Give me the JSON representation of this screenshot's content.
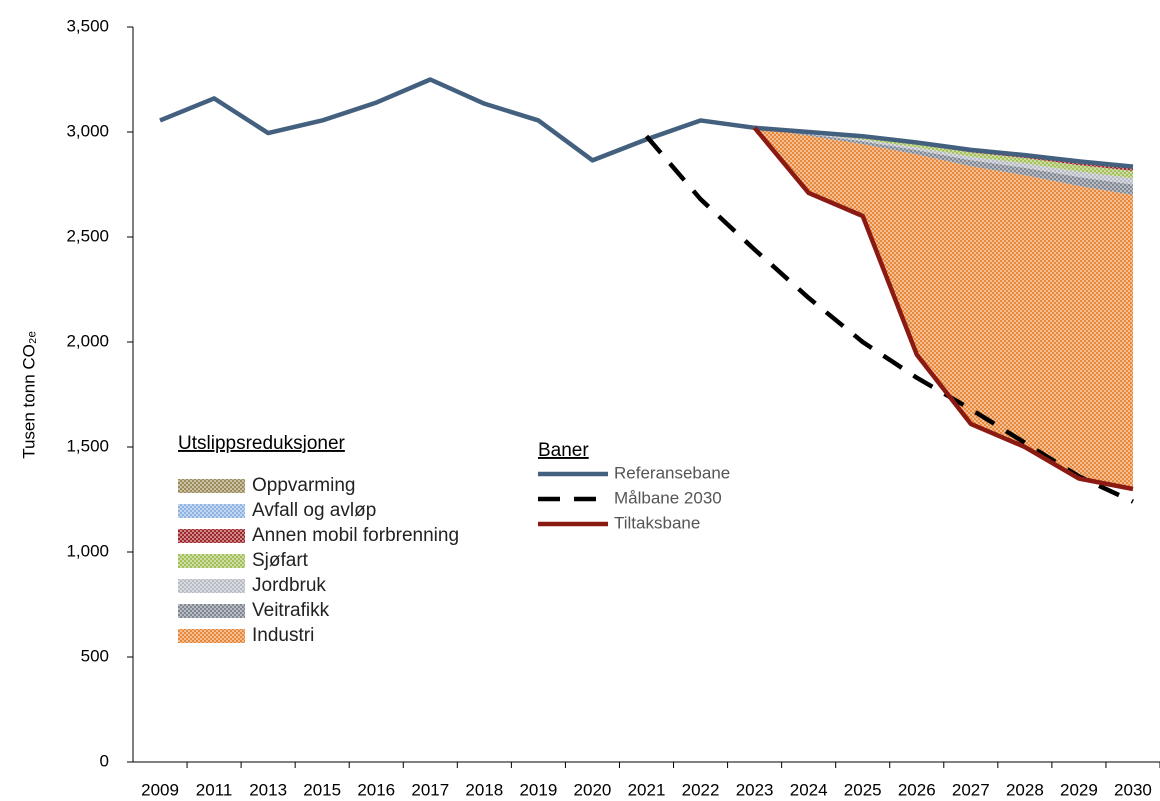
{
  "chart_data": {
    "type": "line",
    "y_label": "Tusen tonn CO₂ₑ",
    "categories": [
      "2009",
      "2011",
      "2013",
      "2015",
      "2016",
      "2017",
      "2018",
      "2019",
      "2020",
      "2021",
      "2022",
      "2023",
      "2024",
      "2025",
      "2026",
      "2027",
      "2028",
      "2029",
      "2030"
    ],
    "ylim": [
      0,
      3500
    ],
    "yticks": [
      0,
      500,
      {
        "value": 1000,
        "label": "1,000"
      },
      {
        "value": 1500,
        "label": "1,500"
      },
      {
        "value": 2000,
        "label": "2,000"
      },
      {
        "value": 2500,
        "label": "2,500"
      },
      {
        "value": 3000,
        "label": "3,000"
      },
      {
        "value": 3500,
        "label": "3,500"
      }
    ],
    "lines_legend_title": "Baner",
    "series": [
      {
        "name": "Referansebane",
        "color": "#44607f",
        "dash": false,
        "values": [
          3055,
          3160,
          2995,
          3055,
          3140,
          3250,
          3135,
          3055,
          2865,
          2965,
          3055,
          3020,
          3000,
          2980,
          2950,
          2915,
          2890,
          2860,
          2835
        ]
      },
      {
        "name": "Målbane 2030",
        "color": "#000000",
        "dash": true,
        "values": [
          null,
          null,
          null,
          null,
          null,
          null,
          null,
          null,
          null,
          2980,
          2680,
          2440,
          2210,
          2000,
          1830,
          1680,
          1520,
          1360,
          1240
        ]
      },
      {
        "name": "Tiltaksbane",
        "color": "#8b1a12",
        "dash": false,
        "values": [
          null,
          null,
          null,
          null,
          null,
          null,
          null,
          null,
          null,
          null,
          null,
          3020,
          2710,
          2600,
          1940,
          1610,
          1500,
          1350,
          1300
        ]
      }
    ],
    "areas_legend_title": "Utslippsreduksjoner",
    "areas": [
      {
        "name": "Industri",
        "color": "#e8883a",
        "values": [
          null,
          null,
          null,
          null,
          null,
          null,
          null,
          null,
          null,
          null,
          null,
          0,
          272,
          342,
          953,
          1227,
          1294,
          1393,
          1400
        ]
      },
      {
        "name": "Veitrafikk",
        "color": "#7f8792",
        "values": [
          null,
          null,
          null,
          null,
          null,
          null,
          null,
          null,
          null,
          null,
          null,
          0,
          7,
          14,
          21,
          29,
          36,
          43,
          50
        ]
      },
      {
        "name": "Jordbruk",
        "color": "#b7bcc4",
        "values": [
          null,
          null,
          null,
          null,
          null,
          null,
          null,
          null,
          null,
          null,
          null,
          0,
          4,
          8,
          13,
          17,
          21,
          26,
          30
        ]
      },
      {
        "name": "Sjøfart",
        "color": "#a4c05a",
        "values": [
          null,
          null,
          null,
          null,
          null,
          null,
          null,
          null,
          null,
          null,
          null,
          0,
          5,
          10,
          15,
          20,
          25,
          30,
          35
        ]
      },
      {
        "name": "Annen mobil forbrenning",
        "color": "#a0282c",
        "values": [
          null,
          null,
          null,
          null,
          null,
          null,
          null,
          null,
          null,
          null,
          null,
          0,
          2,
          4,
          6,
          9,
          11,
          13,
          15
        ]
      },
      {
        "name": "Avfall og avløp",
        "color": "#8fb4e3",
        "values": [
          null,
          null,
          null,
          null,
          null,
          null,
          null,
          null,
          null,
          null,
          null,
          0,
          0,
          1,
          1,
          2,
          2,
          3,
          3
        ]
      },
      {
        "name": "Oppvarming",
        "color": "#9c8c5a",
        "values": [
          null,
          null,
          null,
          null,
          null,
          null,
          null,
          null,
          null,
          null,
          null,
          0,
          0,
          1,
          1,
          1,
          1,
          2,
          2
        ]
      }
    ]
  }
}
